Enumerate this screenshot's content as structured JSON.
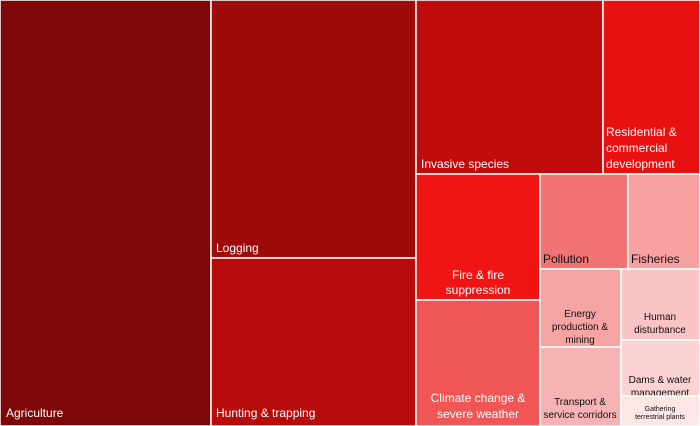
{
  "chart_data": {
    "type": "treemap",
    "cells": [
      {
        "label": [
          "Agriculture"
        ],
        "color": "#7e0606",
        "text_color": "#ffffff",
        "font": 12
      },
      {
        "label": [
          "Logging"
        ],
        "color": "#9e0b0b",
        "text_color": "#ffffff",
        "font": 12
      },
      {
        "label": [
          "Hunting & trapping"
        ],
        "color": "#b80c0c",
        "text_color": "#ffffff",
        "font": 12
      },
      {
        "label": [
          "Invasive species"
        ],
        "color": "#bf0b0b",
        "text_color": "#ffffff",
        "font": 12
      },
      {
        "label": [
          "Residential &",
          "commercial",
          "development"
        ],
        "color": "#e81111",
        "text_color": "#ffffff",
        "font": 12
      },
      {
        "label": [
          "Fire & fire",
          "suppression"
        ],
        "color": "#f01414",
        "text_color": "#ffffff",
        "font": 12
      },
      {
        "label": [
          "Pollution"
        ],
        "color": "#f27373",
        "text_color": "#111111",
        "font": 12
      },
      {
        "label": [
          "Fisheries"
        ],
        "color": "#f7a1a1",
        "text_color": "#111111",
        "font": 12
      },
      {
        "label": [
          "Climate change &",
          "severe weather"
        ],
        "color": "#f05656",
        "text_color": "#ffffff",
        "font": 12
      },
      {
        "label": [
          "Energy",
          "production &",
          "mining"
        ],
        "color": "#f6a3a3",
        "text_color": "#111111",
        "font": 10
      },
      {
        "label": [
          "Human",
          "disturbance"
        ],
        "color": "#fac4c4",
        "text_color": "#111111",
        "font": 10
      },
      {
        "label": [
          "Transport &",
          "service corridors"
        ],
        "color": "#f7b3b3",
        "text_color": "#111111",
        "font": 10
      },
      {
        "label": [
          "Dams & water",
          "management"
        ],
        "color": "#fbd3d3",
        "text_color": "#111111",
        "font": 10
      },
      {
        "label": [
          "Gathering",
          "terrestrial plants"
        ],
        "color": "#fde6e6",
        "text_color": "#111111",
        "font": 7
      }
    ]
  }
}
